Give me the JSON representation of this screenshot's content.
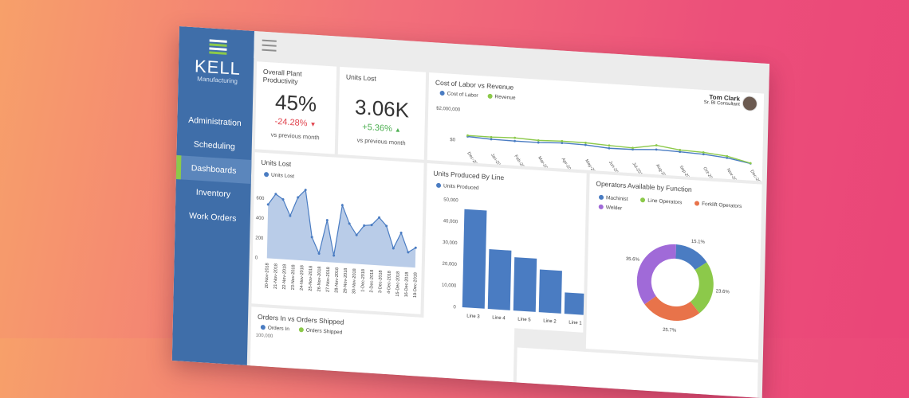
{
  "app": {
    "logo_title": "KELL",
    "logo_subtitle": "Manufacturing"
  },
  "nav": {
    "items": [
      {
        "label": "Administration"
      },
      {
        "label": "Scheduling"
      },
      {
        "label": "Dashboards",
        "active": true
      },
      {
        "label": "Inventory"
      },
      {
        "label": "Work Orders"
      }
    ]
  },
  "user": {
    "name": "Tom Clark",
    "role": "Sr. BI Consultant"
  },
  "kpis": {
    "productivity": {
      "title": "Overall Plant Productivity",
      "value": "45%",
      "delta": "-24.28%",
      "sub": "vs previous month"
    },
    "units_lost": {
      "title": "Units Lost",
      "value": "3.06K",
      "delta": "+5.36%",
      "sub": "vs previous month"
    }
  },
  "colors": {
    "sidebar": "#3f6ea9",
    "accent_green": "#8cc94a",
    "negative": "#e0434d",
    "positive": "#4caf50",
    "series_blue": "#4a7cc2",
    "series_green": "#8cc94a",
    "series_orange": "#e8734a",
    "series_purple": "#a06ad8"
  },
  "icons": {
    "logo": "striped-globe-icon",
    "menu": "hamburger-icon",
    "down": "triangle-down-icon",
    "up": "triangle-up-icon"
  },
  "chart_data": [
    {
      "type": "line",
      "title": "Cost of Labor vs Revenue",
      "y_ticks": [
        "$2,000,000",
        "$0"
      ],
      "categories": [
        "Dec-2017",
        "Jan-2018",
        "Feb-2018",
        "Mar-2018",
        "Apr-2018",
        "May-2018",
        "Jun-2018",
        "Jul-2018",
        "Aug-2018",
        "Sep-2018",
        "Oct-2018",
        "Nov-2018",
        "Dec-2018"
      ],
      "series": [
        {
          "name": "Cost of Labor",
          "values": [
            260000,
            180000,
            160000,
            160000,
            230000,
            200000,
            80000,
            100000,
            190000,
            140000,
            80000,
            -60000,
            -330000
          ]
        },
        {
          "name": "Revenue",
          "values": [
            330000,
            320000,
            370000,
            300000,
            350000,
            340000,
            260000,
            200000,
            470000,
            260000,
            200000,
            50000,
            -310000
          ]
        }
      ],
      "ylim": [
        -400000,
        2000000
      ]
    },
    {
      "type": "area",
      "title": "Units Lost",
      "series": [
        {
          "name": "Units Lost",
          "values": [
            540,
            650,
            600,
            440,
            630,
            710,
            240,
            80,
            420,
            70,
            580,
            400,
            290,
            390,
            400,
            480,
            400,
            180,
            340,
            150,
            200
          ]
        }
      ],
      "y_ticks": [
        "600",
        "400",
        "200",
        "0"
      ],
      "x_tick_labels": [
        "20-Nov-2018",
        "21-Nov-2018",
        "22-Nov-2018",
        "23-Nov-2018",
        "24-Nov-2018",
        "25-Nov-2018",
        "26-Nov-2018",
        "27-Nov-2018",
        "28-Nov-2018",
        "29-Nov-2018",
        "30-Nov-2018",
        "1-Dec-2018",
        "2-Dec-2018",
        "3-Dec-2018",
        "4-Dec-2018",
        "15-Dec-2018",
        "16-Dec-2018",
        "19-Dec-2018"
      ],
      "ylim": [
        0,
        720
      ]
    },
    {
      "type": "bar",
      "title": "Units Produced By Line",
      "series": [
        {
          "name": "Units Produced",
          "values": [
            46000,
            28000,
            25000,
            20000,
            10000
          ]
        }
      ],
      "categories": [
        "Line 3",
        "Line 4",
        "Line 5",
        "Line 2",
        "Line 1"
      ],
      "y_ticks": [
        "50,000",
        "40,000",
        "30,000",
        "20,000",
        "10,000",
        "0"
      ],
      "ylim": [
        0,
        50000
      ]
    },
    {
      "type": "pie",
      "title": "Operators Available by Function",
      "series": [
        {
          "name": "Operators",
          "values": [
            15.1,
            23.6,
            25.7,
            35.6
          ]
        }
      ],
      "labels": [
        "Machinist",
        "Line Operators",
        "Forklift Operators",
        "Welder"
      ],
      "value_labels": [
        "15.1%",
        "23.6%",
        "25.7%",
        "35.6%"
      ]
    },
    {
      "type": "bar",
      "title": "Orders In vs Orders Shipped",
      "series": [
        {
          "name": "Orders In",
          "values": []
        },
        {
          "name": "Orders Shipped",
          "values": []
        }
      ],
      "y_ticks": [
        "100,000"
      ]
    }
  ]
}
